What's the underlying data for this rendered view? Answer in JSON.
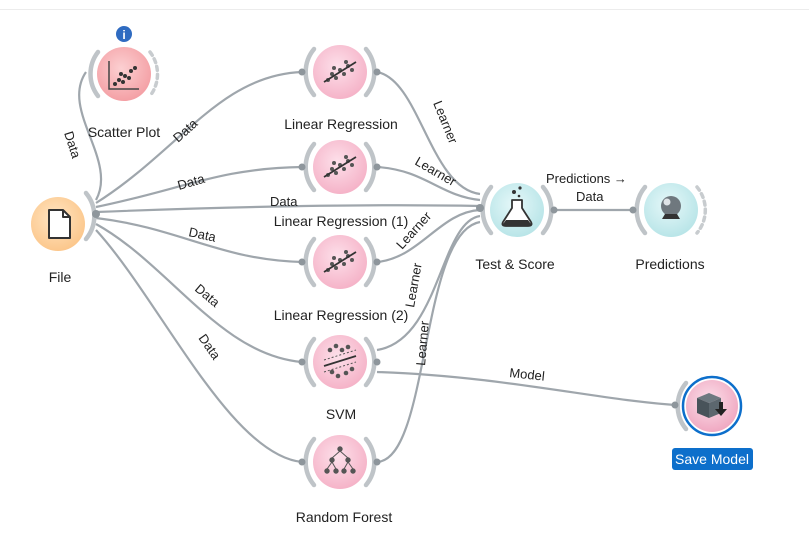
{
  "colors": {
    "link": "#9fa6ac",
    "data_widget": "#fdd4a6",
    "visualize_widget": "#f7aeb2",
    "model_widget": "#f9c0d2",
    "evaluate_widget": "#c7ecee",
    "selection": "#0d6fcb",
    "info_badge": "#2f6bc1"
  },
  "nodes": {
    "file": {
      "label": "File",
      "icon": "file-icon"
    },
    "scatter_plot": {
      "label": "Scatter Plot",
      "icon": "scatter-plot-icon",
      "badge": "i"
    },
    "linear_regression": {
      "label": "Linear Regression",
      "icon": "linear-regression-icon"
    },
    "linear_regression_1": {
      "label": "Linear Regression (1)",
      "icon": "linear-regression-icon"
    },
    "linear_regression_2": {
      "label": "Linear Regression (2)",
      "icon": "linear-regression-icon"
    },
    "svm": {
      "label": "SVM",
      "icon": "svm-icon"
    },
    "random_forest": {
      "label": "Random Forest",
      "icon": "random-forest-icon"
    },
    "test_score": {
      "label": "Test & Score",
      "icon": "flask-icon"
    },
    "predictions": {
      "label": "Predictions",
      "icon": "crystal-ball-icon"
    },
    "save_model": {
      "label": "Save Model",
      "icon": "save-model-icon",
      "selected": true
    }
  },
  "links": {
    "file_scatter": "Data",
    "file_lr": "Data",
    "file_lr1": "Data",
    "file_test": "Data",
    "file_lr2": "Data",
    "file_svm": "Data",
    "file_rf": "Data",
    "lr_test": "Learner",
    "lr1_test": "Learner",
    "lr2_test": "Learner",
    "svm_test": "Learner",
    "rf_test": "Learner",
    "test_predictions_top": "Predictions →",
    "test_predictions_bottom": "Data",
    "svm_save": "Model"
  }
}
